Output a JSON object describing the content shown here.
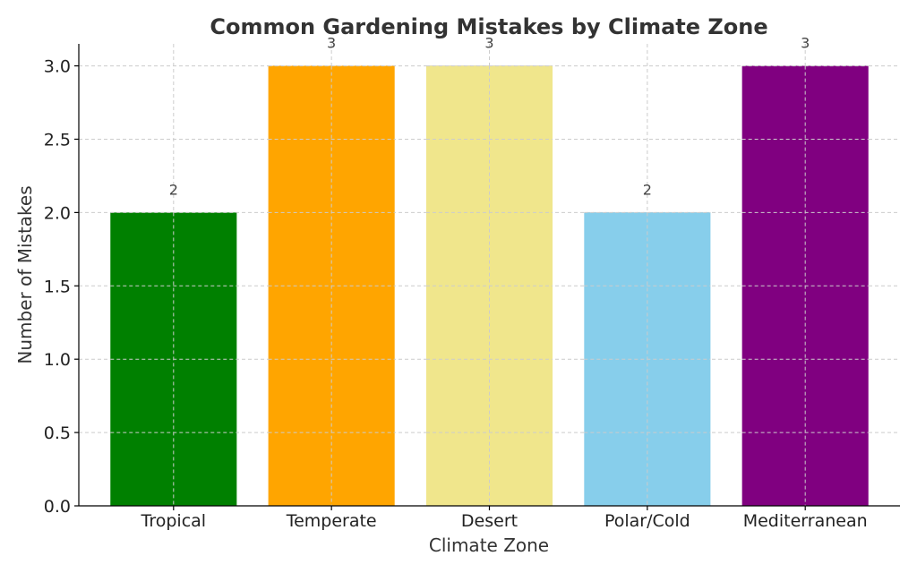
{
  "chart_data": {
    "type": "bar",
    "title": "Common Gardening Mistakes by Climate Zone",
    "xlabel": "Climate Zone",
    "ylabel": "Number of Mistakes",
    "categories": [
      "Tropical",
      "Temperate",
      "Desert",
      "Polar/Cold",
      "Mediterranean"
    ],
    "values": [
      2,
      3,
      3,
      2,
      3
    ],
    "data_labels": [
      "2",
      "3",
      "3",
      "2",
      "3"
    ],
    "colors": [
      "#008000",
      "#FFA500",
      "#F0E68C",
      "#87CEEB",
      "#800080"
    ],
    "ylim": [
      0,
      3.15
    ],
    "yticks": [
      0.0,
      0.5,
      1.0,
      1.5,
      2.0,
      2.5,
      3.0
    ],
    "ytick_labels": [
      "0.0",
      "0.5",
      "1.0",
      "1.5",
      "2.0",
      "2.5",
      "3.0"
    ],
    "grid": true
  }
}
